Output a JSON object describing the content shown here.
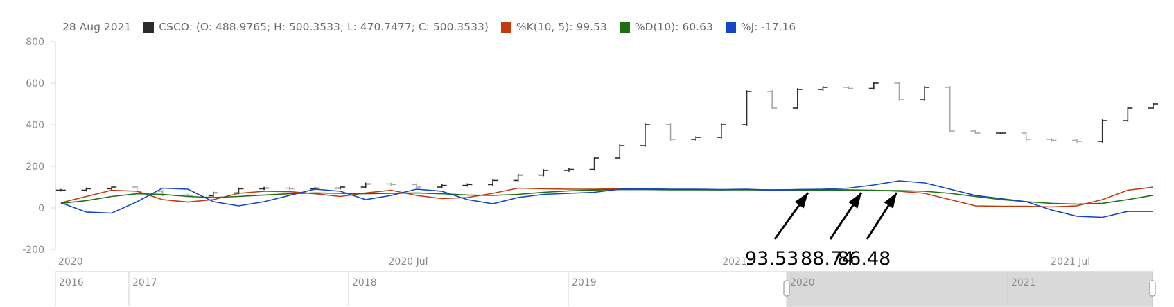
{
  "legend": {
    "date": "28 Aug 2021",
    "csco": "CSCO: (O: 488.9765; H: 500.3533; L: 470.7477; C: 500.3533)",
    "k": "%K(10, 5): 99.53",
    "d": "%D(10): 60.63",
    "j": "%J: -17.16"
  },
  "colors": {
    "csco": "#2b2b2b",
    "k": "#c23b0e",
    "d": "#1f6e12",
    "j": "#1346c4",
    "axis": "#cfcfcf",
    "tick": "#8a8a8a",
    "navigator_fill": "#d9d9d9"
  },
  "chart_data": {
    "type": "line",
    "title": "",
    "xlabel": "",
    "ylabel": "",
    "ylim": [
      -200,
      800
    ],
    "y_ticks": [
      "800",
      "600",
      "400",
      "200",
      "0",
      "-200"
    ],
    "x_ticks": [
      "2020",
      "2020 Jul",
      "2021",
      "2021 Jul"
    ],
    "x_range": [
      "2020-01-01",
      "2021-08-28"
    ],
    "x": [
      "2020-01-04",
      "2020-01-18",
      "2020-02-01",
      "2020-02-15",
      "2020-02-29",
      "2020-03-14",
      "2020-03-28",
      "2020-04-11",
      "2020-04-25",
      "2020-05-09",
      "2020-05-23",
      "2020-06-06",
      "2020-06-20",
      "2020-07-04",
      "2020-07-18",
      "2020-08-01",
      "2020-08-15",
      "2020-08-29",
      "2020-09-12",
      "2020-09-26",
      "2020-10-10",
      "2020-10-24",
      "2020-11-07",
      "2020-11-21",
      "2020-12-05",
      "2020-12-19",
      "2021-01-02",
      "2021-01-16",
      "2021-01-30",
      "2021-02-13",
      "2021-02-27",
      "2021-03-13",
      "2021-03-27",
      "2021-04-10",
      "2021-04-24",
      "2021-05-08",
      "2021-05-22",
      "2021-06-05",
      "2021-06-19",
      "2021-07-03",
      "2021-07-17",
      "2021-07-31",
      "2021-08-14",
      "2021-08-28"
    ],
    "series": [
      {
        "name": "CSCO",
        "values": [
          85,
          92,
          100,
          80,
          62,
          58,
          72,
          92,
          95,
          92,
          95,
          100,
          115,
          112,
          100,
          108,
          112,
          132,
          158,
          180,
          185,
          240,
          300,
          400,
          330,
          340,
          400,
          560,
          480,
          570,
          580,
          575,
          600,
          520,
          580,
          370,
          360,
          360,
          330,
          325,
          320,
          420,
          480,
          500
        ]
      },
      {
        "name": "%K(10, 5)",
        "values": [
          25,
          55,
          85,
          80,
          40,
          28,
          40,
          70,
          80,
          78,
          68,
          55,
          72,
          85,
          60,
          45,
          50,
          70,
          95,
          92,
          90,
          90,
          92,
          90,
          88,
          88,
          87,
          88,
          87,
          88,
          88,
          87,
          85,
          80,
          70,
          40,
          10,
          8,
          8,
          5,
          10,
          40,
          85,
          99.53
        ]
      },
      {
        "name": "%D(10)",
        "values": [
          22,
          35,
          55,
          68,
          65,
          55,
          50,
          55,
          62,
          68,
          72,
          70,
          68,
          70,
          72,
          68,
          62,
          60,
          65,
          75,
          82,
          86,
          88,
          88,
          87,
          87,
          87,
          87,
          86,
          86,
          86,
          85,
          84,
          83,
          80,
          70,
          55,
          40,
          30,
          22,
          18,
          22,
          40,
          60.63
        ]
      },
      {
        "name": "%J",
        "values": [
          25,
          -20,
          -25,
          30,
          95,
          90,
          30,
          10,
          30,
          60,
          90,
          80,
          40,
          60,
          90,
          80,
          40,
          20,
          50,
          65,
          70,
          75,
          90,
          92,
          90,
          90,
          88,
          90,
          85,
          88,
          90,
          95,
          110,
          130,
          120,
          90,
          60,
          45,
          30,
          -10,
          -40,
          -45,
          -17.16,
          -17.16
        ]
      }
    ],
    "annotations": [
      "93.53",
      "88.74",
      "86.48"
    ],
    "grid": false,
    "legend_position": "top-left"
  },
  "navigator": {
    "labels": [
      "2016",
      "2017",
      "2018",
      "2019",
      "2020",
      "2021"
    ]
  }
}
